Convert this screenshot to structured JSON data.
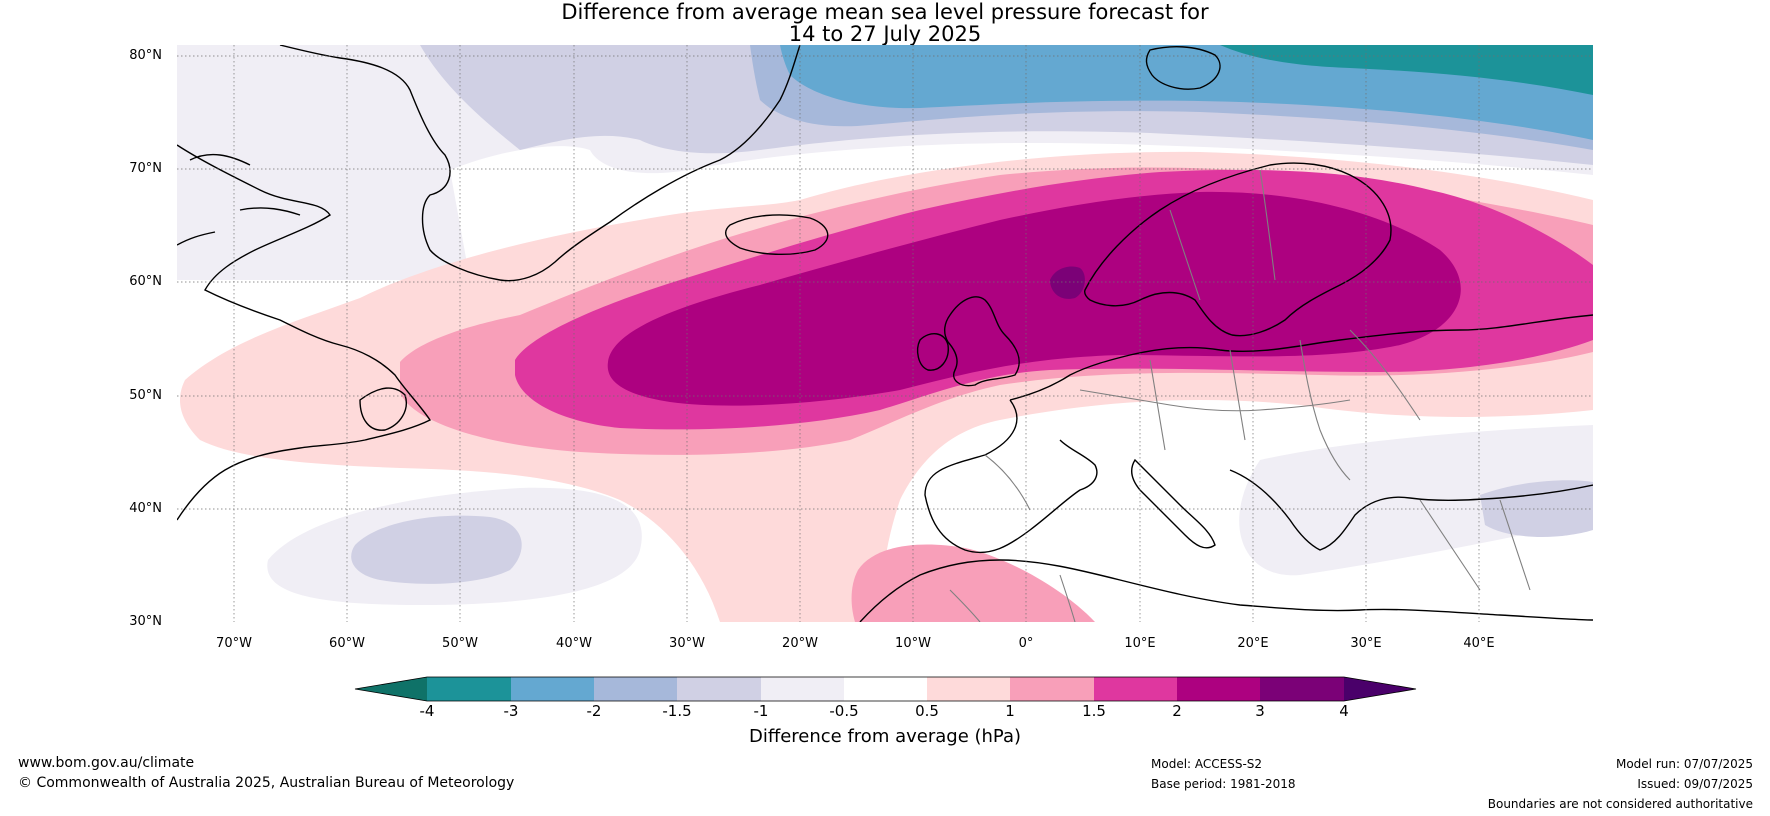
{
  "title": {
    "line1": "Difference from average mean sea level pressure forecast for",
    "line2": "14 to 27 July 2025"
  },
  "map": {
    "lat_labels": [
      "80°N",
      "70°N",
      "60°N",
      "50°N",
      "40°N",
      "30°N"
    ],
    "lon_labels": [
      "70°W",
      "60°W",
      "50°W",
      "40°W",
      "30°W",
      "20°W",
      "10°W",
      "0°",
      "10°E",
      "20°E",
      "30°E",
      "40°E"
    ],
    "lon_range": [
      -75,
      50
    ],
    "lat_range": [
      30,
      81
    ],
    "ocean_color": "#ffffff",
    "coastline_color": "#000000",
    "border_color": "#808080"
  },
  "legend": {
    "ticks": [
      "-4",
      "-3",
      "-2",
      "-1.5",
      "-1",
      "-0.5",
      "0.5",
      "1",
      "1.5",
      "2",
      "3",
      "4"
    ],
    "colors": [
      "#0f7268",
      "#1c9399",
      "#64a8d1",
      "#a6b8da",
      "#d0d0e4",
      "#f0eef5",
      "#ffffff",
      "#fedada",
      "#f89fb9",
      "#df379f",
      "#ad0180",
      "#7b0177",
      "#4a006a"
    ],
    "label": "Difference from average (hPa)"
  },
  "footer": {
    "website": "www.bom.gov.au/climate",
    "copyright": "© Commonwealth of Australia 2025, Australian Bureau of Meteorology",
    "model": "Model: ACCESS-S2",
    "base_period": "Base period: 1981-2018",
    "model_run": "Model run: 07/07/2025",
    "issued": "Issued: 09/07/2025",
    "disclaimer": "Boundaries are not considered authoritative"
  }
}
